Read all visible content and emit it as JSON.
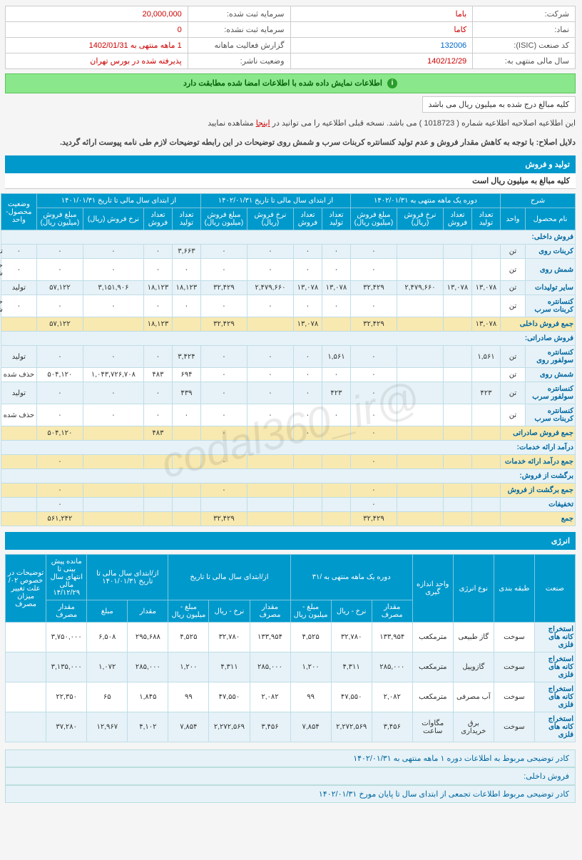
{
  "watermark": "@codal360_ir",
  "info": {
    "row1": {
      "l1": "شرکت:",
      "v1": "باما",
      "l2": "سرمایه ثبت شده:",
      "v2": "20,000,000"
    },
    "row2": {
      "l1": "نماد:",
      "v1": "کاما",
      "l2": "سرمایه ثبت نشده:",
      "v2": "0"
    },
    "row3": {
      "l1": "کد صنعت (ISIC):",
      "v1": "132006",
      "l2": "گزارش فعالیت ماهانه",
      "v2": "1 ماهه منتهی به 1402/01/31"
    },
    "row4": {
      "l1": "سال مالی منتهی به:",
      "v1": "1402/12/29",
      "l2": "وضعیت ناشر:",
      "v2": "پذیرفته شده در بورس تهران"
    }
  },
  "banner": "اطلاعات نمایش داده شده با اطلاعات امضا شده مطابقت دارد",
  "unit_note": "کلیه مبالغ درج شده به میلیون ریال می باشد",
  "desc1_pre": "این اطلاعیه اصلاحیه اطلاعیه شماره ( 1018723 ) می باشد. نسخه قبلی اطلاعیه را می توانید در ",
  "desc1_link": "اینجا",
  "desc1_post": " مشاهده نمایید",
  "desc2": "دلایل اصلاح: با توجه به کاهش مقدار فروش و عدم تولید کنسانتره کربنات سرب و شمش روی توضیحات در این رابطه توضیحات لازم طی نامه پیوست ارائه گردید.",
  "section1_title": "تولید و فروش",
  "section1_sub": "کلیه مبالغ به میلیون ریال است",
  "t1": {
    "headers": {
      "grp1": "شرح",
      "h_name": "نام محصول",
      "h_unit": "واحد",
      "grp2": "دوره یک ماهه منتهی به ۱۴۰۲/۰۱/۳۱",
      "grp3": "از ابتدای سال مالی تا تاریخ ۱۴۰۲/۰۱/۳۱",
      "grp4": "از ابتدای سال مالی تا تاریخ ۱۴۰۱/۰۱/۳۱",
      "grp5": "وضعیت محصول-واحد",
      "h_prod": "تعداد تولید",
      "h_sell": "تعداد فروش",
      "h_rate": "نرخ فروش (ریال)",
      "h_amt": "مبلغ فروش (میلیون ریال)"
    },
    "sections": {
      "domestic": "فروش داخلی:",
      "domestic_sum": "جمع فروش داخلی",
      "export": "فروش صادراتی:",
      "export_sum": "جمع فروش صادراتی",
      "service": "درآمد ارائه خدمات:",
      "service_sum": "جمع درآمد ارائه خدمات",
      "return": "برگشت از فروش:",
      "return_sum": "جمع برگشت از فروش",
      "discount": "تخفیفات",
      "total": "جمع"
    },
    "rows": {
      "d1": {
        "name": "کربنات روی",
        "unit": "تن",
        "c": [
          "",
          "",
          "",
          "۰",
          "۰",
          "۰",
          "۰",
          "۰",
          "۳,۶۶۳",
          "۰",
          "۰",
          "۰",
          "۰",
          "تولید"
        ]
      },
      "d2": {
        "name": "شمش روی",
        "unit": "تن",
        "c": [
          "",
          "",
          "",
          "۰",
          "۰",
          "۰",
          "۰",
          "۰",
          "۰",
          "۰",
          "۰",
          "۰",
          "۰",
          "حذف شده"
        ]
      },
      "d3": {
        "name": "سایر تولیدات",
        "unit": "تن",
        "c": [
          "۱۳,۰۷۸",
          "۱۳,۰۷۸",
          "۲,۴۷۹,۶۶۰",
          "۳۲,۴۲۹",
          "۱۳,۰۷۸",
          "۱۳,۰۷۸",
          "۲,۴۷۹,۶۶۰",
          "۳۲,۴۲۹",
          "۱۸,۱۲۳",
          "۱۸,۱۲۳",
          "۳,۱۵۱,۹۰۶",
          "۵۷,۱۲۲",
          "تولید"
        ]
      },
      "d4": {
        "name": "کنسانتره کربنات سرب",
        "unit": "تن",
        "c": [
          "",
          "",
          "",
          "۰",
          "۰",
          "۰",
          "۰",
          "۰",
          "۰",
          "۰",
          "۰",
          "۰",
          "۰",
          "حذف شده"
        ]
      },
      "dsum": {
        "c": [
          "۱۳,۰۷۸",
          "",
          "",
          "۳۲,۴۲۹",
          "",
          "۱۳,۰۷۸",
          "",
          "۳۲,۴۲۹",
          "",
          "۱۸,۱۲۳",
          "",
          "۵۷,۱۲۲",
          ""
        ]
      },
      "e1": {
        "name": "کنسانتره سولفور روی",
        "unit": "تن",
        "c": [
          "۱,۵۶۱",
          "",
          "",
          "۰",
          "۱,۵۶۱",
          "۰",
          "۰",
          "۰",
          "۳,۴۲۴",
          "۰",
          "۰",
          "۰",
          "تولید"
        ]
      },
      "e2": {
        "name": "شمش روی",
        "unit": "تن",
        "c": [
          "",
          "",
          "",
          "۰",
          "۰",
          "۰",
          "۰",
          "۰",
          "۶۹۴",
          "۴۸۳",
          "۱,۰۴۳,۷۲۶,۷۰۸",
          "۵۰۴,۱۲۰",
          "حذف شده"
        ]
      },
      "e3": {
        "name": "کنسانتره سولفور سرب",
        "unit": "تن",
        "c": [
          "۴۲۳",
          "",
          "",
          "۰",
          "۴۲۳",
          "۰",
          "۰",
          "۰",
          "۴۳۹",
          "۰",
          "۰",
          "۰",
          "تولید"
        ]
      },
      "e4": {
        "name": "کنسانتره کربنات سرب",
        "unit": "تن",
        "c": [
          "",
          "",
          "",
          "۰",
          "۰",
          "۰",
          "۰",
          "۰",
          "۰",
          "۰",
          "۰",
          "۰",
          "حذف شده"
        ]
      },
      "esum": {
        "c": [
          "",
          "",
          "",
          "۰",
          "",
          "۰",
          "",
          "۰",
          "",
          "۴۸۳",
          "",
          "۵۰۴,۱۲۰",
          ""
        ]
      },
      "svcsum": {
        "c": [
          "",
          "",
          "",
          "۰",
          "",
          "",
          "",
          "۰",
          "",
          "",
          "",
          "۰",
          ""
        ]
      },
      "retsum": {
        "c": [
          "",
          "",
          "",
          "۰",
          "",
          "",
          "",
          "۰",
          "",
          "",
          "",
          "۰",
          ""
        ]
      },
      "disc": {
        "c": [
          "",
          "",
          "",
          "۰",
          "",
          "",
          "",
          "",
          "",
          "",
          "",
          "۰",
          ""
        ]
      },
      "total": {
        "c": [
          "",
          "",
          "",
          "۳۲,۴۲۹",
          "",
          "",
          "",
          "۳۲,۴۲۹",
          "",
          "",
          "",
          "۵۶۱,۲۴۲",
          ""
        ]
      }
    }
  },
  "section2_title": "انرژی",
  "t2": {
    "headers": {
      "h1": "صنعت",
      "h2": "طبقه بندی",
      "h3": "نوع انرژی",
      "h4": "واحد اندازه گیری",
      "grp1": "دوره یک ماهه منتهی به /۳۱",
      "grp2": "از/ابتدای سال مالی تا تاریخ",
      "grp3": "از/ابتدای سال مالی تا تاریخ ۱۴۰۱/۰۱/۳۱",
      "grp4": "مانده پیش بینی تا انتهای سال مالی ۱۴/۱۲/۲۹",
      "grp5": "توضیحات در خصوص ۰۲/علت تغییر میزان مصرف",
      "h_qty": "مقدار مصرف",
      "h_rate": "نرخ - ریال",
      "h_amt": "مبلغ - میلیون ریال",
      "h_qty2": "مقدار",
      "h_amt2": "مبلغ"
    },
    "rows": [
      {
        "ind": "استخراج کانه های فلزی",
        "cls": "سوخت",
        "type": "گاز طبیعی",
        "unit": "مترمکعب",
        "c": [
          "۱۳۳,۹۵۴",
          "۳۲,۷۸۰",
          "۴,۵۲۵",
          "۱۳۳,۹۵۴",
          "۳۲,۷۸۰",
          "۴,۵۲۵",
          "۲۹۵,۶۸۸",
          "۶,۵۰۸",
          "۳,۷۵۰,۰۰۰",
          ""
        ]
      },
      {
        "ind": "استخراج کانه های فلزی",
        "cls": "سوخت",
        "type": "گازوییل",
        "unit": "مترمکعب",
        "c": [
          "۲۸۵,۰۰۰",
          "۴,۳۱۱",
          "۱,۲۰۰",
          "۲۸۵,۰۰۰",
          "۴,۳۱۱",
          "۱,۲۰۰",
          "۲۸۵,۰۰۰",
          "۱,۰۷۲",
          "۳,۱۳۵,۰۰۰",
          ""
        ]
      },
      {
        "ind": "استخراج کانه های فلزی",
        "cls": "سوخت",
        "type": "آب مصرفی",
        "unit": "مترمکعب",
        "c": [
          "۲,۰۸۲",
          "۴۷,۵۵۰",
          "۹۹",
          "۲,۰۸۲",
          "۴۷,۵۵۰",
          "۹۹",
          "۱,۸۴۵",
          "۶۵",
          "۲۲,۳۵۰",
          ""
        ]
      },
      {
        "ind": "استخراج کانه های فلزی",
        "cls": "سوخت",
        "type": "برق خریداری",
        "unit": "مگاوات ساعت",
        "c": [
          "۳,۴۵۶",
          "۲,۲۷۲,۵۶۹",
          "۷,۸۵۴",
          "۳,۴۵۶",
          "۲,۲۷۲,۵۶۹",
          "۷,۸۵۴",
          "۴,۱۰۲",
          "۱۲,۹۶۷",
          "۳۷,۲۸۰",
          ""
        ]
      }
    ]
  },
  "footer": {
    "l1": "کادر توضیحی مربوط به اطلاعات دوره ۱ ماهه منتهی به ۱۴۰۲/۰۱/۳۱",
    "l2": "فروش داخلی:",
    "l3": "کادر توضیحی مربوط اطلاعات تجمعی از ابتدای سال تا پایان مورخ ۱۴۰۲/۰۱/۳۱"
  }
}
